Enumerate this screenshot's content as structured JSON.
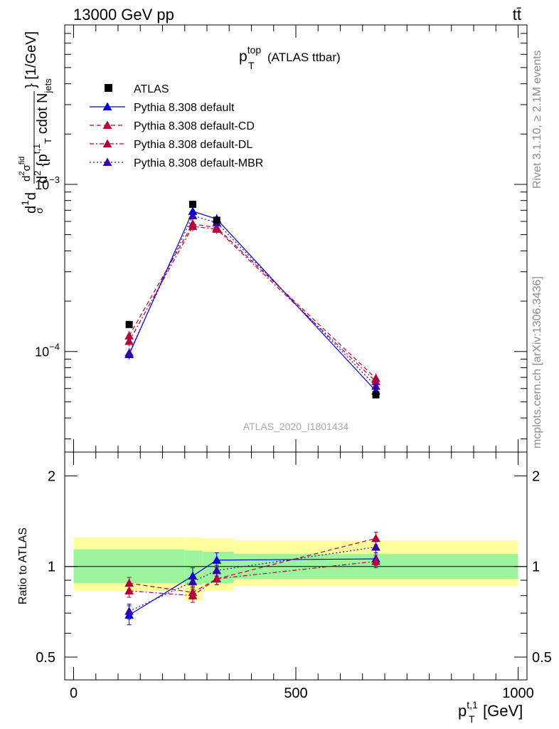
{
  "header": {
    "energy_label": "13000 GeV pp",
    "process_label": "tt̄"
  },
  "side_labels": {
    "rivet": "Rivet 3.1.10, ≥ 2.1M events",
    "mcplots": "mcplots.cern.ch [arXiv:1306.3436]"
  },
  "watermark": "ATLAS_2020_I1801434",
  "chart_data": {
    "type": "line",
    "title": "p_T^top (ATLAS ttbar)",
    "xlabel": "p_T^t,1 [GeV]",
    "ylabel": "d1/σ dσ^fid / d^2 {p_T^t,1 cdot N_jets} [1/GeV]",
    "ratio_ylabel": "Ratio to ATLAS",
    "x_ticks": [
      "0",
      "500",
      "1000"
    ],
    "y_ticks_main": [
      "10^-4",
      "10^-3"
    ],
    "y_ticks_ratio": [
      "0.5",
      "1",
      "2"
    ],
    "xlim": [
      -20,
      1020
    ],
    "ylim_main": [
      2.5e-05,
      0.009
    ],
    "log_y_main": true,
    "ylim_ratio": [
      0.42,
      2.4
    ],
    "log_y_ratio": true,
    "legend_position": "top-left",
    "bins": [
      [
        0,
        250
      ],
      [
        250,
        290
      ],
      [
        290,
        360
      ],
      [
        360,
        1000
      ]
    ],
    "data": {
      "name": "ATLAS",
      "x": [
        125,
        268,
        322,
        680
      ],
      "y": [
        0.000145,
        0.00076,
        0.00061,
        5.5e-05
      ],
      "band_inner": [
        [
          0.88,
          1.14
        ],
        [
          0.87,
          1.13
        ],
        [
          0.88,
          1.12
        ],
        [
          0.91,
          1.1
        ]
      ],
      "band_outer": [
        [
          0.83,
          1.25
        ],
        [
          0.77,
          1.25
        ],
        [
          0.83,
          1.24
        ],
        [
          0.86,
          1.22
        ]
      ]
    },
    "series": [
      {
        "name": "Pythia 8.308 default",
        "color": "#0000dd",
        "dash": "solid",
        "marker": "triangle",
        "x": [
          125,
          268,
          322,
          680
        ],
        "y": [
          9.6e-05,
          0.00069,
          0.00062,
          5.8e-05
        ],
        "ratio": [
          0.69,
          0.93,
          1.05,
          1.06
        ],
        "ratio_err": [
          0.05,
          0.06,
          0.06,
          0.05
        ]
      },
      {
        "name": "Pythia 8.308 default-CD",
        "color": "#b3003b",
        "dash": "6,4",
        "marker": "triangle",
        "x": [
          125,
          268,
          322,
          680
        ],
        "y": [
          0.000124,
          0.00058,
          0.00055,
          6.9e-05
        ],
        "ratio": [
          0.88,
          0.82,
          0.91,
          1.24
        ],
        "ratio_err": [
          0.04,
          0.04,
          0.04,
          0.06
        ]
      },
      {
        "name": "Pythia 8.308 default-DL",
        "color": "#b3003b",
        "dash": "6,3,2,3",
        "marker": "triangle",
        "x": [
          125,
          268,
          322,
          680
        ],
        "y": [
          0.000115,
          0.00056,
          0.00054,
          6.6e-05
        ],
        "ratio": [
          0.83,
          0.8,
          0.91,
          1.04
        ],
        "ratio_err": [
          0.04,
          0.04,
          0.04,
          0.05
        ]
      },
      {
        "name": "Pythia 8.308 default-MBR",
        "color": "#3300aa",
        "dash": "2,3",
        "marker": "triangle",
        "x": [
          125,
          268,
          322,
          680
        ],
        "y": [
          9.8e-05,
          0.00065,
          0.00059,
          6.2e-05
        ],
        "ratio": [
          0.71,
          0.89,
          0.97,
          1.16
        ],
        "ratio_err": [
          0.04,
          0.04,
          0.04,
          0.05
        ]
      }
    ]
  }
}
